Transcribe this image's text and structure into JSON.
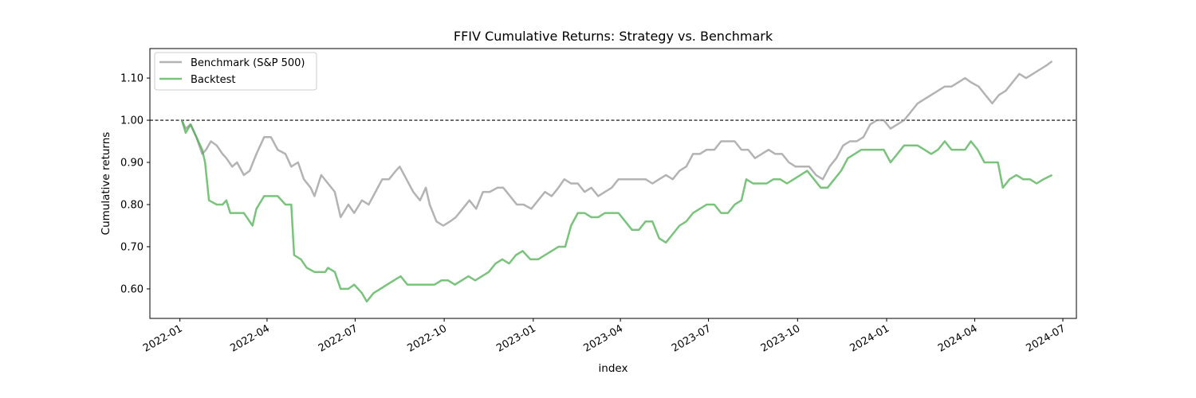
{
  "chart_data": {
    "type": "line",
    "title": "FFIV Cumulative Returns: Strategy vs. Benchmark",
    "xlabel": "index",
    "ylabel": "Cumulative returns",
    "xlim": [
      "2021-12-01",
      "2024-07-15"
    ],
    "ylim": [
      0.53,
      1.17
    ],
    "x_ticks": [
      "2022-01",
      "2022-04",
      "2022-07",
      "2022-10",
      "2023-01",
      "2023-04",
      "2023-07",
      "2023-10",
      "2024-01",
      "2024-04",
      "2024-07"
    ],
    "y_ticks": [
      "0.60",
      "0.70",
      "0.80",
      "0.90",
      "1.00",
      "1.10"
    ],
    "reference_line": {
      "y": 1.0,
      "style": "dashed",
      "color": "#000000"
    },
    "legend": {
      "position": "upper-left"
    },
    "grid": false,
    "series": [
      {
        "name": "Benchmark (S&P 500)",
        "color": "#999999",
        "points": [
          [
            "2022-01-03",
            1.0
          ],
          [
            "2022-01-07",
            0.98
          ],
          [
            "2022-01-12",
            0.99
          ],
          [
            "2022-01-18",
            0.96
          ],
          [
            "2022-01-24",
            0.92
          ],
          [
            "2022-01-28",
            0.93
          ],
          [
            "2022-02-02",
            0.95
          ],
          [
            "2022-02-08",
            0.94
          ],
          [
            "2022-02-14",
            0.92
          ],
          [
            "2022-02-18",
            0.91
          ],
          [
            "2022-02-24",
            0.89
          ],
          [
            "2022-03-01",
            0.9
          ],
          [
            "2022-03-08",
            0.87
          ],
          [
            "2022-03-14",
            0.88
          ],
          [
            "2022-03-21",
            0.92
          ],
          [
            "2022-03-29",
            0.96
          ],
          [
            "2022-04-05",
            0.96
          ],
          [
            "2022-04-12",
            0.93
          ],
          [
            "2022-04-20",
            0.92
          ],
          [
            "2022-04-26",
            0.89
          ],
          [
            "2022-05-03",
            0.9
          ],
          [
            "2022-05-09",
            0.86
          ],
          [
            "2022-05-16",
            0.84
          ],
          [
            "2022-05-20",
            0.82
          ],
          [
            "2022-05-27",
            0.87
          ],
          [
            "2022-06-03",
            0.85
          ],
          [
            "2022-06-10",
            0.83
          ],
          [
            "2022-06-16",
            0.77
          ],
          [
            "2022-06-24",
            0.8
          ],
          [
            "2022-06-30",
            0.78
          ],
          [
            "2022-07-08",
            0.81
          ],
          [
            "2022-07-15",
            0.8
          ],
          [
            "2022-07-22",
            0.83
          ],
          [
            "2022-07-29",
            0.86
          ],
          [
            "2022-08-05",
            0.86
          ],
          [
            "2022-08-12",
            0.88
          ],
          [
            "2022-08-16",
            0.89
          ],
          [
            "2022-08-23",
            0.86
          ],
          [
            "2022-08-30",
            0.83
          ],
          [
            "2022-09-06",
            0.81
          ],
          [
            "2022-09-12",
            0.84
          ],
          [
            "2022-09-16",
            0.8
          ],
          [
            "2022-09-23",
            0.76
          ],
          [
            "2022-09-30",
            0.75
          ],
          [
            "2022-10-07",
            0.76
          ],
          [
            "2022-10-13",
            0.77
          ],
          [
            "2022-10-20",
            0.79
          ],
          [
            "2022-10-27",
            0.81
          ],
          [
            "2022-11-03",
            0.79
          ],
          [
            "2022-11-10",
            0.83
          ],
          [
            "2022-11-17",
            0.83
          ],
          [
            "2022-11-25",
            0.84
          ],
          [
            "2022-12-01",
            0.84
          ],
          [
            "2022-12-08",
            0.82
          ],
          [
            "2022-12-15",
            0.8
          ],
          [
            "2022-12-22",
            0.8
          ],
          [
            "2022-12-30",
            0.79
          ],
          [
            "2023-01-06",
            0.81
          ],
          [
            "2023-01-13",
            0.83
          ],
          [
            "2023-01-20",
            0.82
          ],
          [
            "2023-01-27",
            0.84
          ],
          [
            "2023-02-02",
            0.86
          ],
          [
            "2023-02-09",
            0.85
          ],
          [
            "2023-02-16",
            0.85
          ],
          [
            "2023-02-23",
            0.83
          ],
          [
            "2023-03-02",
            0.84
          ],
          [
            "2023-03-09",
            0.82
          ],
          [
            "2023-03-16",
            0.83
          ],
          [
            "2023-03-23",
            0.84
          ],
          [
            "2023-03-30",
            0.86
          ],
          [
            "2023-04-06",
            0.86
          ],
          [
            "2023-04-13",
            0.86
          ],
          [
            "2023-04-20",
            0.86
          ],
          [
            "2023-04-27",
            0.86
          ],
          [
            "2023-05-04",
            0.85
          ],
          [
            "2023-05-11",
            0.86
          ],
          [
            "2023-05-18",
            0.87
          ],
          [
            "2023-05-25",
            0.86
          ],
          [
            "2023-06-01",
            0.88
          ],
          [
            "2023-06-08",
            0.89
          ],
          [
            "2023-06-15",
            0.92
          ],
          [
            "2023-06-22",
            0.92
          ],
          [
            "2023-06-29",
            0.93
          ],
          [
            "2023-07-07",
            0.93
          ],
          [
            "2023-07-14",
            0.95
          ],
          [
            "2023-07-21",
            0.95
          ],
          [
            "2023-07-28",
            0.95
          ],
          [
            "2023-08-04",
            0.93
          ],
          [
            "2023-08-11",
            0.93
          ],
          [
            "2023-08-18",
            0.91
          ],
          [
            "2023-08-25",
            0.92
          ],
          [
            "2023-09-01",
            0.93
          ],
          [
            "2023-09-08",
            0.92
          ],
          [
            "2023-09-15",
            0.92
          ],
          [
            "2023-09-22",
            0.9
          ],
          [
            "2023-09-29",
            0.89
          ],
          [
            "2023-10-06",
            0.89
          ],
          [
            "2023-10-13",
            0.89
          ],
          [
            "2023-10-20",
            0.87
          ],
          [
            "2023-10-27",
            0.86
          ],
          [
            "2023-11-03",
            0.89
          ],
          [
            "2023-11-10",
            0.91
          ],
          [
            "2023-11-17",
            0.94
          ],
          [
            "2023-11-24",
            0.95
          ],
          [
            "2023-12-01",
            0.95
          ],
          [
            "2023-12-08",
            0.96
          ],
          [
            "2023-12-15",
            0.99
          ],
          [
            "2023-12-22",
            1.0
          ],
          [
            "2023-12-29",
            1.0
          ],
          [
            "2024-01-05",
            0.98
          ],
          [
            "2024-01-12",
            0.99
          ],
          [
            "2024-01-19",
            1.0
          ],
          [
            "2024-01-26",
            1.02
          ],
          [
            "2024-02-02",
            1.04
          ],
          [
            "2024-02-09",
            1.05
          ],
          [
            "2024-02-16",
            1.06
          ],
          [
            "2024-02-23",
            1.07
          ],
          [
            "2024-03-01",
            1.08
          ],
          [
            "2024-03-08",
            1.08
          ],
          [
            "2024-03-15",
            1.09
          ],
          [
            "2024-03-22",
            1.1
          ],
          [
            "2024-03-28",
            1.09
          ],
          [
            "2024-04-05",
            1.08
          ],
          [
            "2024-04-12",
            1.06
          ],
          [
            "2024-04-19",
            1.04
          ],
          [
            "2024-04-26",
            1.06
          ],
          [
            "2024-05-03",
            1.07
          ],
          [
            "2024-05-10",
            1.09
          ],
          [
            "2024-05-17",
            1.11
          ],
          [
            "2024-05-24",
            1.1
          ],
          [
            "2024-05-31",
            1.11
          ],
          [
            "2024-06-07",
            1.12
          ],
          [
            "2024-06-14",
            1.13
          ],
          [
            "2024-06-20",
            1.14
          ]
        ]
      },
      {
        "name": "Backtest",
        "color": "#4caf50",
        "points": [
          [
            "2022-01-03",
            1.0
          ],
          [
            "2022-01-07",
            0.97
          ],
          [
            "2022-01-12",
            0.99
          ],
          [
            "2022-01-18",
            0.96
          ],
          [
            "2022-01-24",
            0.93
          ],
          [
            "2022-01-27",
            0.9
          ],
          [
            "2022-01-31",
            0.81
          ],
          [
            "2022-02-08",
            0.8
          ],
          [
            "2022-02-14",
            0.8
          ],
          [
            "2022-02-18",
            0.81
          ],
          [
            "2022-02-22",
            0.78
          ],
          [
            "2022-03-01",
            0.78
          ],
          [
            "2022-03-08",
            0.78
          ],
          [
            "2022-03-14",
            0.76
          ],
          [
            "2022-03-17",
            0.75
          ],
          [
            "2022-03-21",
            0.79
          ],
          [
            "2022-03-29",
            0.82
          ],
          [
            "2022-04-05",
            0.82
          ],
          [
            "2022-04-12",
            0.82
          ],
          [
            "2022-04-20",
            0.8
          ],
          [
            "2022-04-26",
            0.8
          ],
          [
            "2022-04-29",
            0.68
          ],
          [
            "2022-05-06",
            0.67
          ],
          [
            "2022-05-12",
            0.65
          ],
          [
            "2022-05-20",
            0.64
          ],
          [
            "2022-05-31",
            0.64
          ],
          [
            "2022-06-03",
            0.65
          ],
          [
            "2022-06-10",
            0.64
          ],
          [
            "2022-06-16",
            0.6
          ],
          [
            "2022-06-24",
            0.6
          ],
          [
            "2022-06-30",
            0.61
          ],
          [
            "2022-07-08",
            0.59
          ],
          [
            "2022-07-13",
            0.57
          ],
          [
            "2022-07-20",
            0.59
          ],
          [
            "2022-07-27",
            0.6
          ],
          [
            "2022-08-03",
            0.61
          ],
          [
            "2022-08-10",
            0.62
          ],
          [
            "2022-08-17",
            0.63
          ],
          [
            "2022-08-24",
            0.61
          ],
          [
            "2022-08-31",
            0.61
          ],
          [
            "2022-09-07",
            0.61
          ],
          [
            "2022-09-14",
            0.61
          ],
          [
            "2022-09-21",
            0.61
          ],
          [
            "2022-09-28",
            0.62
          ],
          [
            "2022-10-05",
            0.62
          ],
          [
            "2022-10-12",
            0.61
          ],
          [
            "2022-10-19",
            0.62
          ],
          [
            "2022-10-26",
            0.63
          ],
          [
            "2022-11-02",
            0.62
          ],
          [
            "2022-11-09",
            0.63
          ],
          [
            "2022-11-16",
            0.64
          ],
          [
            "2022-11-23",
            0.66
          ],
          [
            "2022-11-30",
            0.67
          ],
          [
            "2022-12-07",
            0.66
          ],
          [
            "2022-12-14",
            0.68
          ],
          [
            "2022-12-21",
            0.69
          ],
          [
            "2022-12-29",
            0.67
          ],
          [
            "2023-01-06",
            0.67
          ],
          [
            "2023-01-13",
            0.68
          ],
          [
            "2023-01-20",
            0.69
          ],
          [
            "2023-01-27",
            0.7
          ],
          [
            "2023-02-03",
            0.7
          ],
          [
            "2023-02-09",
            0.75
          ],
          [
            "2023-02-16",
            0.78
          ],
          [
            "2023-02-23",
            0.78
          ],
          [
            "2023-03-02",
            0.77
          ],
          [
            "2023-03-09",
            0.77
          ],
          [
            "2023-03-16",
            0.78
          ],
          [
            "2023-03-23",
            0.78
          ],
          [
            "2023-03-30",
            0.78
          ],
          [
            "2023-04-06",
            0.76
          ],
          [
            "2023-04-13",
            0.74
          ],
          [
            "2023-04-20",
            0.74
          ],
          [
            "2023-04-27",
            0.76
          ],
          [
            "2023-05-04",
            0.76
          ],
          [
            "2023-05-11",
            0.72
          ],
          [
            "2023-05-18",
            0.71
          ],
          [
            "2023-05-25",
            0.73
          ],
          [
            "2023-06-01",
            0.75
          ],
          [
            "2023-06-08",
            0.76
          ],
          [
            "2023-06-15",
            0.78
          ],
          [
            "2023-06-22",
            0.79
          ],
          [
            "2023-06-29",
            0.8
          ],
          [
            "2023-07-07",
            0.8
          ],
          [
            "2023-07-14",
            0.78
          ],
          [
            "2023-07-21",
            0.78
          ],
          [
            "2023-07-28",
            0.8
          ],
          [
            "2023-08-04",
            0.81
          ],
          [
            "2023-08-09",
            0.86
          ],
          [
            "2023-08-16",
            0.85
          ],
          [
            "2023-08-23",
            0.85
          ],
          [
            "2023-08-30",
            0.85
          ],
          [
            "2023-09-06",
            0.86
          ],
          [
            "2023-09-13",
            0.86
          ],
          [
            "2023-09-20",
            0.85
          ],
          [
            "2023-09-27",
            0.86
          ],
          [
            "2023-10-04",
            0.87
          ],
          [
            "2023-10-11",
            0.88
          ],
          [
            "2023-10-18",
            0.86
          ],
          [
            "2023-10-25",
            0.84
          ],
          [
            "2023-11-01",
            0.84
          ],
          [
            "2023-11-08",
            0.86
          ],
          [
            "2023-11-15",
            0.88
          ],
          [
            "2023-11-22",
            0.91
          ],
          [
            "2023-11-29",
            0.92
          ],
          [
            "2023-12-06",
            0.93
          ],
          [
            "2023-12-13",
            0.93
          ],
          [
            "2023-12-20",
            0.93
          ],
          [
            "2023-12-29",
            0.93
          ],
          [
            "2024-01-05",
            0.9
          ],
          [
            "2024-01-12",
            0.92
          ],
          [
            "2024-01-19",
            0.94
          ],
          [
            "2024-01-26",
            0.94
          ],
          [
            "2024-02-02",
            0.94
          ],
          [
            "2024-02-09",
            0.93
          ],
          [
            "2024-02-16",
            0.92
          ],
          [
            "2024-02-23",
            0.93
          ],
          [
            "2024-03-01",
            0.95
          ],
          [
            "2024-03-08",
            0.93
          ],
          [
            "2024-03-15",
            0.93
          ],
          [
            "2024-03-22",
            0.93
          ],
          [
            "2024-03-28",
            0.95
          ],
          [
            "2024-04-04",
            0.93
          ],
          [
            "2024-04-11",
            0.9
          ],
          [
            "2024-04-18",
            0.9
          ],
          [
            "2024-04-25",
            0.9
          ],
          [
            "2024-04-30",
            0.84
          ],
          [
            "2024-05-07",
            0.86
          ],
          [
            "2024-05-14",
            0.87
          ],
          [
            "2024-05-21",
            0.86
          ],
          [
            "2024-05-28",
            0.86
          ],
          [
            "2024-06-04",
            0.85
          ],
          [
            "2024-06-11",
            0.86
          ],
          [
            "2024-06-20",
            0.87
          ]
        ]
      }
    ]
  }
}
